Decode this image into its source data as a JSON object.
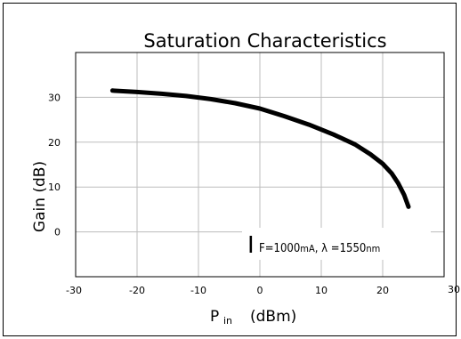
{
  "chart_data": {
    "type": "line",
    "title": "Saturation Characteristics",
    "xlabel_main": "P",
    "xlabel_sub": "in",
    "xlabel_unit": "(dBm)",
    "ylabel": "Gain (dB)",
    "xlim": [
      -30,
      30
    ],
    "ylim": [
      -10,
      40
    ],
    "xticks": [
      "-30",
      "-20",
      "-10",
      "0",
      "10",
      "20",
      "30"
    ],
    "yticks": [
      "0",
      "10",
      "20",
      "30"
    ],
    "grid": true,
    "legend": "none",
    "series": [
      {
        "x": [
          -24,
          -20,
          -16,
          -12,
          -8,
          -4,
          0,
          4,
          8,
          12,
          15.5,
          18,
          20,
          21.5,
          22.5,
          23.5,
          24.2
        ],
        "y": [
          31.5,
          31.2,
          30.8,
          30.3,
          29.6,
          28.7,
          27.5,
          25.8,
          23.9,
          21.7,
          19.5,
          17.3,
          15.2,
          13.0,
          10.9,
          8.2,
          5.6
        ],
        "color": "#000000"
      }
    ],
    "annotation": {
      "symbol": "I",
      "subscript": "F=1000",
      "unit1": "mA",
      "middle": ",  λ =1550",
      "unit2": "nm"
    }
  }
}
